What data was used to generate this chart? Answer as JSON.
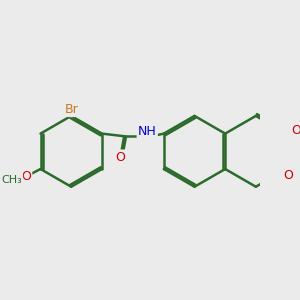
{
  "bg_color": "#ebebeb",
  "bond_color": "#2d6b2d",
  "bond_width": 1.8,
  "atom_colors": {
    "Br": "#c87820",
    "O": "#cc0000",
    "N": "#0000cc",
    "C": "#2d6b2d",
    "default": "#2d6b2d"
  },
  "font_size_atom": 9,
  "font_size_label": 8
}
